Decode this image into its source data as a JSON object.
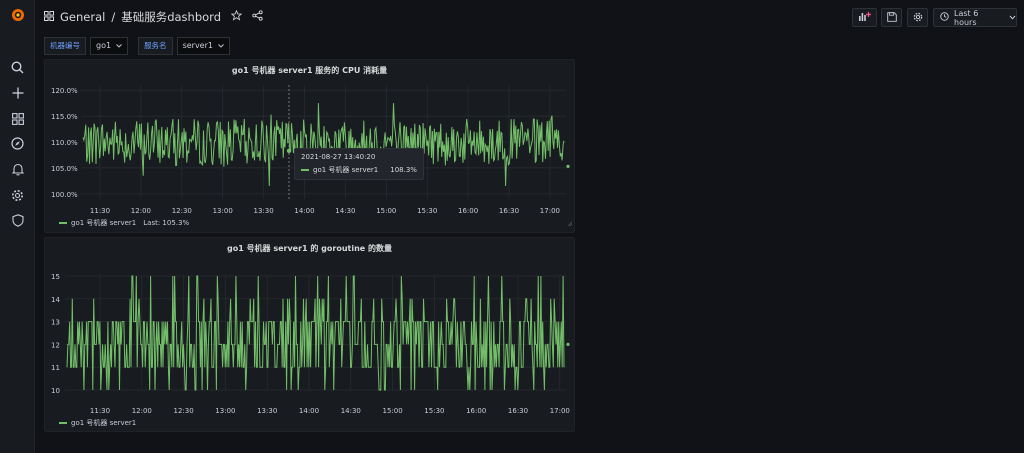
{
  "breadcrumb": {
    "folder": "General",
    "separator": "/",
    "dashboard": "基础服务dashbord"
  },
  "toolbar": {
    "time_range": "Last 6 hours"
  },
  "variables": [
    {
      "label": "机器编号",
      "value": "go1"
    },
    {
      "label": "服务名",
      "value": "server1"
    }
  ],
  "colors": {
    "series": "#73bf69",
    "background": "#111217",
    "panel": "#181b1f"
  },
  "panels": [
    {
      "title": "go1 号机器 server1 服务的 CPU 消耗量",
      "legend": {
        "name": "go1 号机器 server1",
        "last": "Last: 105.3%"
      },
      "tooltip": {
        "time": "2021-08-27 13:40:20",
        "series": "go1 号机器 server1",
        "value": "108.3%"
      }
    },
    {
      "title": "go1 号机器 server1 的 goroutine 的数量",
      "legend": {
        "name": "go1 号机器 server1"
      }
    }
  ],
  "chart_data": [
    {
      "type": "line",
      "title": "go1 号机器 server1 服务的 CPU 消耗量",
      "x_ticks": [
        "11:30",
        "12:00",
        "12:30",
        "13:00",
        "13:30",
        "14:00",
        "14:30",
        "15:00",
        "15:30",
        "16:00",
        "16:30",
        "17:00"
      ],
      "y_ticks": [
        "100.0%",
        "105.0%",
        "110.0%",
        "115.0%",
        "120.0%"
      ],
      "ylim": [
        99,
        121
      ],
      "xlim": [
        "11:04",
        "17:04"
      ],
      "series": [
        {
          "name": "go1 号机器 server1",
          "description": "noisy values fluctuating between ~102% and ~117%, mostly 106–114%",
          "last": 105.3
        }
      ],
      "grid": true
    },
    {
      "type": "line",
      "title": "go1 号机器 server1 的 goroutine 的数量",
      "x_ticks": [
        "11:30",
        "12:00",
        "12:30",
        "13:00",
        "13:30",
        "14:00",
        "14:30",
        "15:00",
        "15:30",
        "16:00",
        "16:30",
        "17:00"
      ],
      "y_ticks": [
        "10",
        "11",
        "12",
        "13",
        "14",
        "15"
      ],
      "ylim": [
        10,
        15
      ],
      "xlim": [
        "11:04",
        "17:04"
      ],
      "series": [
        {
          "name": "go1 号机器 server1",
          "description": "integer values oscillating between 10 and 15, mostly 11–13",
          "last": 12
        }
      ],
      "grid": true
    }
  ]
}
